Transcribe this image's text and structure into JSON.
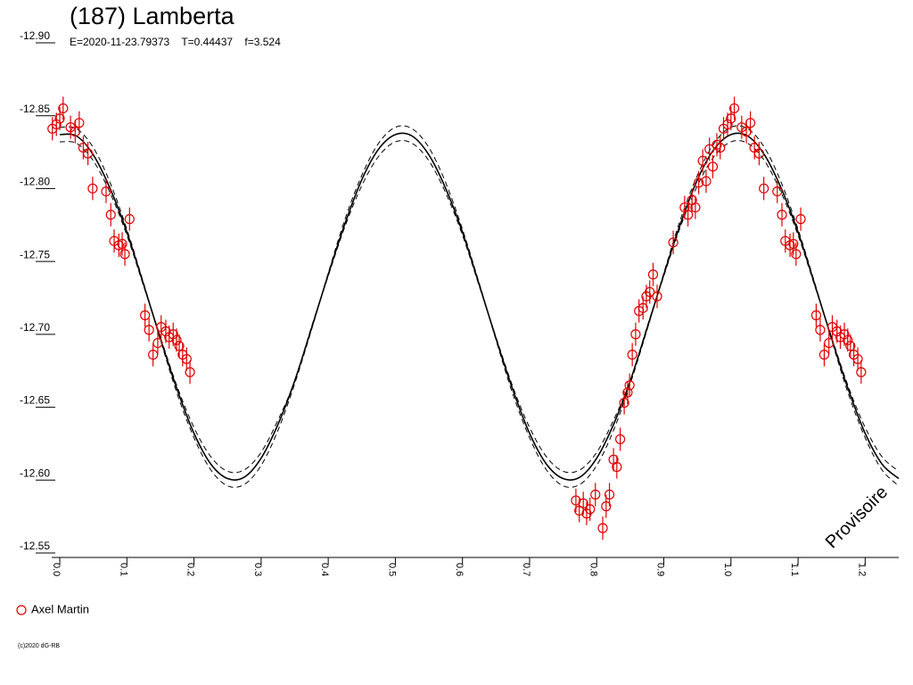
{
  "chart_data": {
    "type": "lightcurve",
    "title": "(187) Lamberta",
    "subtitle": "E=2020-11-23.79373    T=0.44437    f=3.524",
    "annotation": "Provisoire",
    "copyright": "(c)2020 dG-RB",
    "xlim": [
      -0.012,
      1.25
    ],
    "ylim": [
      -12.9,
      -12.55
    ],
    "y_inverted": true,
    "xticks": [
      {
        "value": 0,
        "label": "0.0"
      },
      0.1,
      0.2,
      0.3,
      0.4,
      0.5,
      0.6,
      0.7,
      0.8,
      0.9,
      {
        "value": 1,
        "label": "1.0"
      },
      1.1,
      1.2
    ],
    "yticks": [
      {
        "value": -12.9,
        "label": "-12.90"
      },
      -12.85,
      {
        "value": -12.8,
        "label": "-12.80"
      },
      -12.75,
      {
        "value": -12.7,
        "label": "-12.70"
      },
      -12.65,
      {
        "value": -12.6,
        "label": "-12.60"
      },
      -12.55
    ],
    "error": 0.008,
    "series": [
      {
        "name": "Axel Martin",
        "color": "#e00000",
        "x": [
          -0.011,
          -0.005,
          0,
          0.005,
          0.016,
          0.023,
          0.029,
          0.035,
          0.042,
          0.049,
          0.069,
          0.076,
          0.081,
          0.088,
          0.093,
          0.097,
          0.104,
          0.127,
          0.133,
          0.139,
          0.146,
          0.151,
          0.158,
          0.163,
          0.169,
          0.174,
          0.178,
          0.183,
          0.189,
          0.194,
          0.769,
          0.774,
          0.78,
          0.785,
          0.79,
          0.798,
          0.809,
          0.814,
          0.819,
          0.825,
          0.83,
          0.835,
          0.841,
          0.846,
          0.849,
          0.853,
          0.858,
          0.863,
          0.869,
          0.874,
          0.879,
          0.884,
          0.89,
          0.914,
          0.931,
          0.936,
          0.942,
          0.947,
          0.952,
          0.958,
          0.963,
          0.968,
          0.973,
          0.979,
          0.984,
          0.989,
          0.995,
          1.0,
          1.005,
          1.016,
          1.023,
          1.029,
          1.035,
          1.042,
          1.049,
          1.069,
          1.076,
          1.081,
          1.088,
          1.093,
          1.097,
          1.104,
          1.127,
          1.133,
          1.139,
          1.146,
          1.151,
          1.158,
          1.163,
          1.169,
          1.174,
          1.178,
          1.183,
          1.189,
          1.194
        ],
        "values": [
          -12.838,
          -12.841,
          -12.845,
          -12.852,
          -12.839,
          -12.836,
          -12.842,
          -12.825,
          -12.821,
          -12.797,
          -12.795,
          -12.779,
          -12.761,
          -12.758,
          -12.759,
          -12.752,
          -12.776,
          -12.71,
          -12.7,
          -12.683,
          -12.691,
          -12.702,
          -12.699,
          -12.695,
          -12.697,
          -12.693,
          -12.689,
          -12.683,
          -12.68,
          -12.671,
          -12.583,
          -12.576,
          -12.581,
          -12.574,
          -12.577,
          -12.587,
          -12.564,
          -12.579,
          -12.587,
          -12.611,
          -12.606,
          -12.625,
          -12.65,
          -12.657,
          -12.662,
          -12.683,
          -12.697,
          -12.713,
          -12.715,
          -12.723,
          -12.726,
          -12.738,
          -12.723,
          -12.76,
          -12.784,
          -12.779,
          -12.789,
          -12.784,
          -12.801,
          -12.816,
          -12.802,
          -12.824,
          -12.812,
          -12.827,
          -12.825,
          -12.838,
          -12.841,
          -12.845,
          -12.852,
          -12.839,
          -12.836,
          -12.842,
          -12.825,
          -12.821,
          -12.797,
          -12.795,
          -12.779,
          -12.761,
          -12.758,
          -12.759,
          -12.752,
          -12.776,
          -12.71,
          -12.7,
          -12.683,
          -12.691,
          -12.702,
          -12.699,
          -12.695,
          -12.697,
          -12.693,
          -12.689,
          -12.683,
          -12.68,
          -12.671
        ]
      }
    ],
    "fit_x": [
      0,
      0.025,
      0.05,
      0.075,
      0.1,
      0.125,
      0.15,
      0.175,
      0.2,
      0.225,
      0.25,
      0.275,
      0.3,
      0.325,
      0.35,
      0.375,
      0.4,
      0.425,
      0.45,
      0.475,
      0.5,
      0.525,
      0.55,
      0.575,
      0.6,
      0.625,
      0.65,
      0.675,
      0.7,
      0.725,
      0.75,
      0.775,
      0.8,
      0.825,
      0.85,
      0.875,
      0.9,
      0.925,
      0.95,
      0.975,
      1.0,
      1.025,
      1.05,
      1.075,
      1.1,
      1.125,
      1.15,
      1.175,
      1.2,
      1.225,
      1.25
    ],
    "fit_lines": [
      {
        "style": "solid",
        "values": [
          -12.834,
          -12.833,
          -12.82,
          -12.797,
          -12.767,
          -12.731,
          -12.694,
          -12.659,
          -12.629,
          -12.608,
          -12.598,
          -12.599,
          -12.612,
          -12.635,
          -12.665,
          -12.701,
          -12.738,
          -12.773,
          -12.803,
          -12.824,
          -12.834,
          -12.833,
          -12.82,
          -12.797,
          -12.767,
          -12.731,
          -12.694,
          -12.659,
          -12.629,
          -12.608,
          -12.598,
          -12.599,
          -12.612,
          -12.635,
          -12.665,
          -12.701,
          -12.738,
          -12.773,
          -12.803,
          -12.824,
          -12.834,
          -12.833,
          -12.82,
          -12.797,
          -12.767,
          -12.731,
          -12.694,
          -12.659,
          -12.629,
          -12.608,
          -12.598
        ]
      },
      {
        "style": "dashed",
        "values": [
          -12.839,
          -12.838,
          -12.825,
          -12.801,
          -12.769,
          -12.732,
          -12.693,
          -12.656,
          -12.626,
          -12.604,
          -12.593,
          -12.594,
          -12.607,
          -12.631,
          -12.663,
          -12.7,
          -12.739,
          -12.776,
          -12.806,
          -12.828,
          -12.839,
          -12.838,
          -12.825,
          -12.801,
          -12.769,
          -12.732,
          -12.693,
          -12.656,
          -12.626,
          -12.604,
          -12.593,
          -12.594,
          -12.607,
          -12.631,
          -12.663,
          -12.7,
          -12.739,
          -12.776,
          -12.806,
          -12.828,
          -12.839,
          -12.838,
          -12.825,
          -12.801,
          -12.769,
          -12.732,
          -12.693,
          -12.656,
          -12.626,
          -12.604,
          -12.593
        ]
      },
      {
        "style": "dashed",
        "values": [
          -12.829,
          -12.828,
          -12.816,
          -12.794,
          -12.765,
          -12.73,
          -12.695,
          -12.661,
          -12.633,
          -12.613,
          -12.603,
          -12.604,
          -12.616,
          -12.638,
          -12.665,
          -12.702,
          -12.737,
          -12.771,
          -12.799,
          -12.819,
          -12.829,
          -12.828,
          -12.816,
          -12.794,
          -12.765,
          -12.73,
          -12.695,
          -12.661,
          -12.633,
          -12.613,
          -12.603,
          -12.604,
          -12.616,
          -12.638,
          -12.665,
          -12.702,
          -12.737,
          -12.771,
          -12.799,
          -12.819,
          -12.829,
          -12.828,
          -12.816,
          -12.794,
          -12.765,
          -12.73,
          -12.695,
          -12.661,
          -12.633,
          -12.613,
          -12.603
        ]
      }
    ]
  }
}
